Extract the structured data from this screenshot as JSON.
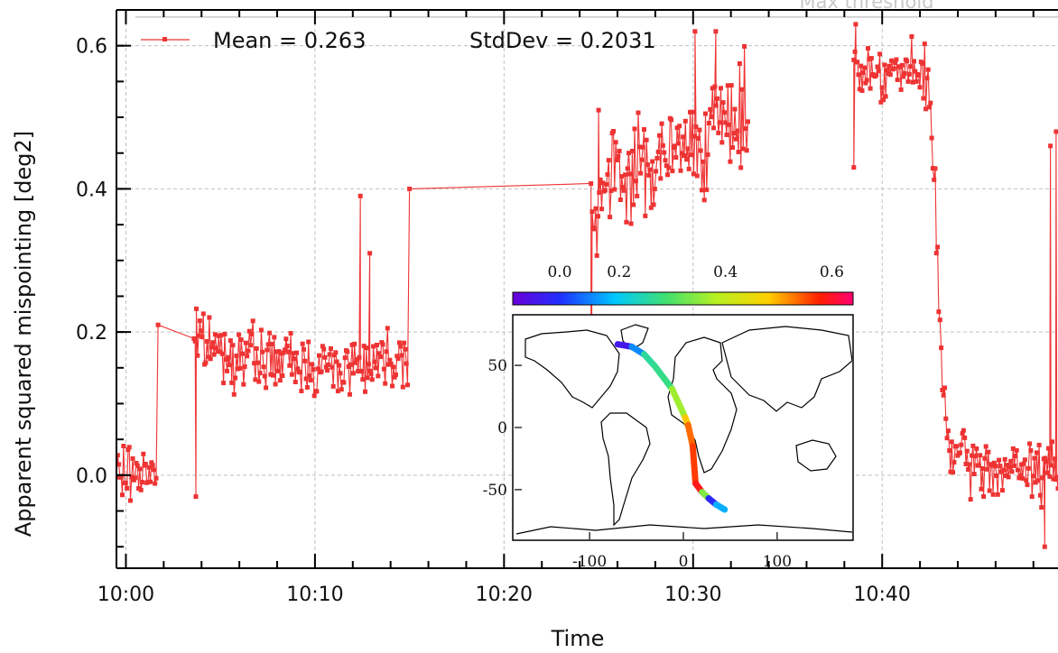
{
  "chart_data": {
    "type": "line",
    "xlabel": "Time",
    "ylabel": "Apparent squared mispointing [deg2]",
    "xlim": [
      -0.5,
      49.3
    ],
    "ylim": [
      -0.13,
      0.65
    ],
    "x_unit": "minutes after 10:00",
    "xticks": [
      {
        "v": 0,
        "label": "10:00"
      },
      {
        "v": 10,
        "label": "10:10"
      },
      {
        "v": 20,
        "label": "10:20"
      },
      {
        "v": 30,
        "label": "10:30"
      },
      {
        "v": 40,
        "label": "10:40"
      }
    ],
    "yticks": [
      {
        "v": 0.0,
        "label": "0.0"
      },
      {
        "v": 0.2,
        "label": "0.2"
      },
      {
        "v": 0.4,
        "label": "0.4"
      },
      {
        "v": 0.6,
        "label": "0.6"
      }
    ],
    "grid": true,
    "threshold": {
      "label": "Max threshold",
      "value": 0.64
    },
    "legend": {
      "position": "top-left",
      "series_marker": "red line with square markers",
      "mean_text": "Mean = 0.263",
      "std_text": "StdDev = 0.2031"
    },
    "series": [
      {
        "color": "#ee3333",
        "segments": [
          {
            "from": -0.5,
            "to": 1.6,
            "levels": [
              [
                -0.5,
                0.0
              ],
              [
                1.6,
                0.01
              ]
            ],
            "noise": 0.02
          },
          {
            "from": 3.6,
            "to": 14.9,
            "levels": [
              [
                3.6,
                0.19
              ],
              [
                5.5,
                0.17
              ],
              [
                8.0,
                0.16
              ],
              [
                11.0,
                0.15
              ],
              [
                14.9,
                0.17
              ]
            ],
            "noise": 0.02
          },
          {
            "from": 24.6,
            "to": 32.9,
            "levels": [
              [
                24.6,
                0.37
              ],
              [
                26.0,
                0.42
              ],
              [
                28.5,
                0.44
              ],
              [
                31.0,
                0.48
              ],
              [
                32.9,
                0.51
              ]
            ],
            "noise": 0.035
          },
          {
            "from": 38.5,
            "to": 49.3,
            "levels": [
              [
                38.5,
                0.57
              ],
              [
                41.8,
                0.56
              ],
              [
                42.5,
                0.54
              ],
              [
                42.8,
                0.4
              ],
              [
                43.1,
                0.15
              ],
              [
                43.6,
                0.03
              ],
              [
                45.0,
                0.01
              ],
              [
                48.5,
                0.005
              ],
              [
                49.3,
                0.01
              ]
            ],
            "noise": 0.02
          }
        ],
        "spikes": [
          {
            "x": 1.7,
            "y": 0.21
          },
          {
            "x": 3.7,
            "y": -0.03
          },
          {
            "x": 12.4,
            "y": 0.39
          },
          {
            "x": 12.9,
            "y": 0.31
          },
          {
            "x": 15.0,
            "y": 0.4
          },
          {
            "x": 24.6,
            "y": -0.05
          },
          {
            "x": 25.0,
            "y": 0.51
          },
          {
            "x": 30.1,
            "y": 0.62
          },
          {
            "x": 31.2,
            "y": 0.62
          },
          {
            "x": 38.5,
            "y": 0.43
          },
          {
            "x": 38.6,
            "y": 0.63
          },
          {
            "x": 48.6,
            "y": -0.1
          },
          {
            "x": 48.9,
            "y": 0.46
          },
          {
            "x": 49.2,
            "y": 0.48
          }
        ]
      }
    ],
    "inset_map": {
      "type": "map",
      "colorbar": {
        "ticks": [
          {
            "v": 0.0,
            "label": "0.0"
          },
          {
            "v": 0.2,
            "label": "0.2"
          },
          {
            "v": 0.4,
            "label": "0.4"
          },
          {
            "v": 0.6,
            "label": "0.6"
          }
        ],
        "range": [
          0.0,
          0.64
        ]
      },
      "xlim": [
        -180,
        180
      ],
      "ylim": [
        -90,
        90
      ],
      "xticks": [
        {
          "v": -100,
          "label": "-100"
        },
        {
          "v": 0,
          "label": "0"
        },
        {
          "v": 100,
          "label": "100"
        }
      ],
      "yticks": [
        {
          "v": 50,
          "label": "50"
        },
        {
          "v": 0,
          "label": "0"
        },
        {
          "v": -50,
          "label": "-50"
        }
      ],
      "track": [
        {
          "lon": -70,
          "lat": 67,
          "value": 0.04
        },
        {
          "lon": -55,
          "lat": 65,
          "value": 0.05
        },
        {
          "lon": -42,
          "lat": 59,
          "value": 0.25
        },
        {
          "lon": -30,
          "lat": 49,
          "value": 0.27
        },
        {
          "lon": -20,
          "lat": 39,
          "value": 0.27
        },
        {
          "lon": -12,
          "lat": 31,
          "value": 0.28
        },
        {
          "lon": 2,
          "lat": 8,
          "value": 0.45
        },
        {
          "lon": 5,
          "lat": 2,
          "value": 0.52
        },
        {
          "lon": 8,
          "lat": -8,
          "value": 0.55
        },
        {
          "lon": 10,
          "lat": -15,
          "value": 0.52
        },
        {
          "lon": 13,
          "lat": -45,
          "value": 0.6
        },
        {
          "lon": 20,
          "lat": -52,
          "value": 0.58
        },
        {
          "lon": 27,
          "lat": -57,
          "value": 0.1
        },
        {
          "lon": 35,
          "lat": -62,
          "value": 0.05
        },
        {
          "lon": 44,
          "lat": -66,
          "value": 0.3
        }
      ]
    }
  }
}
